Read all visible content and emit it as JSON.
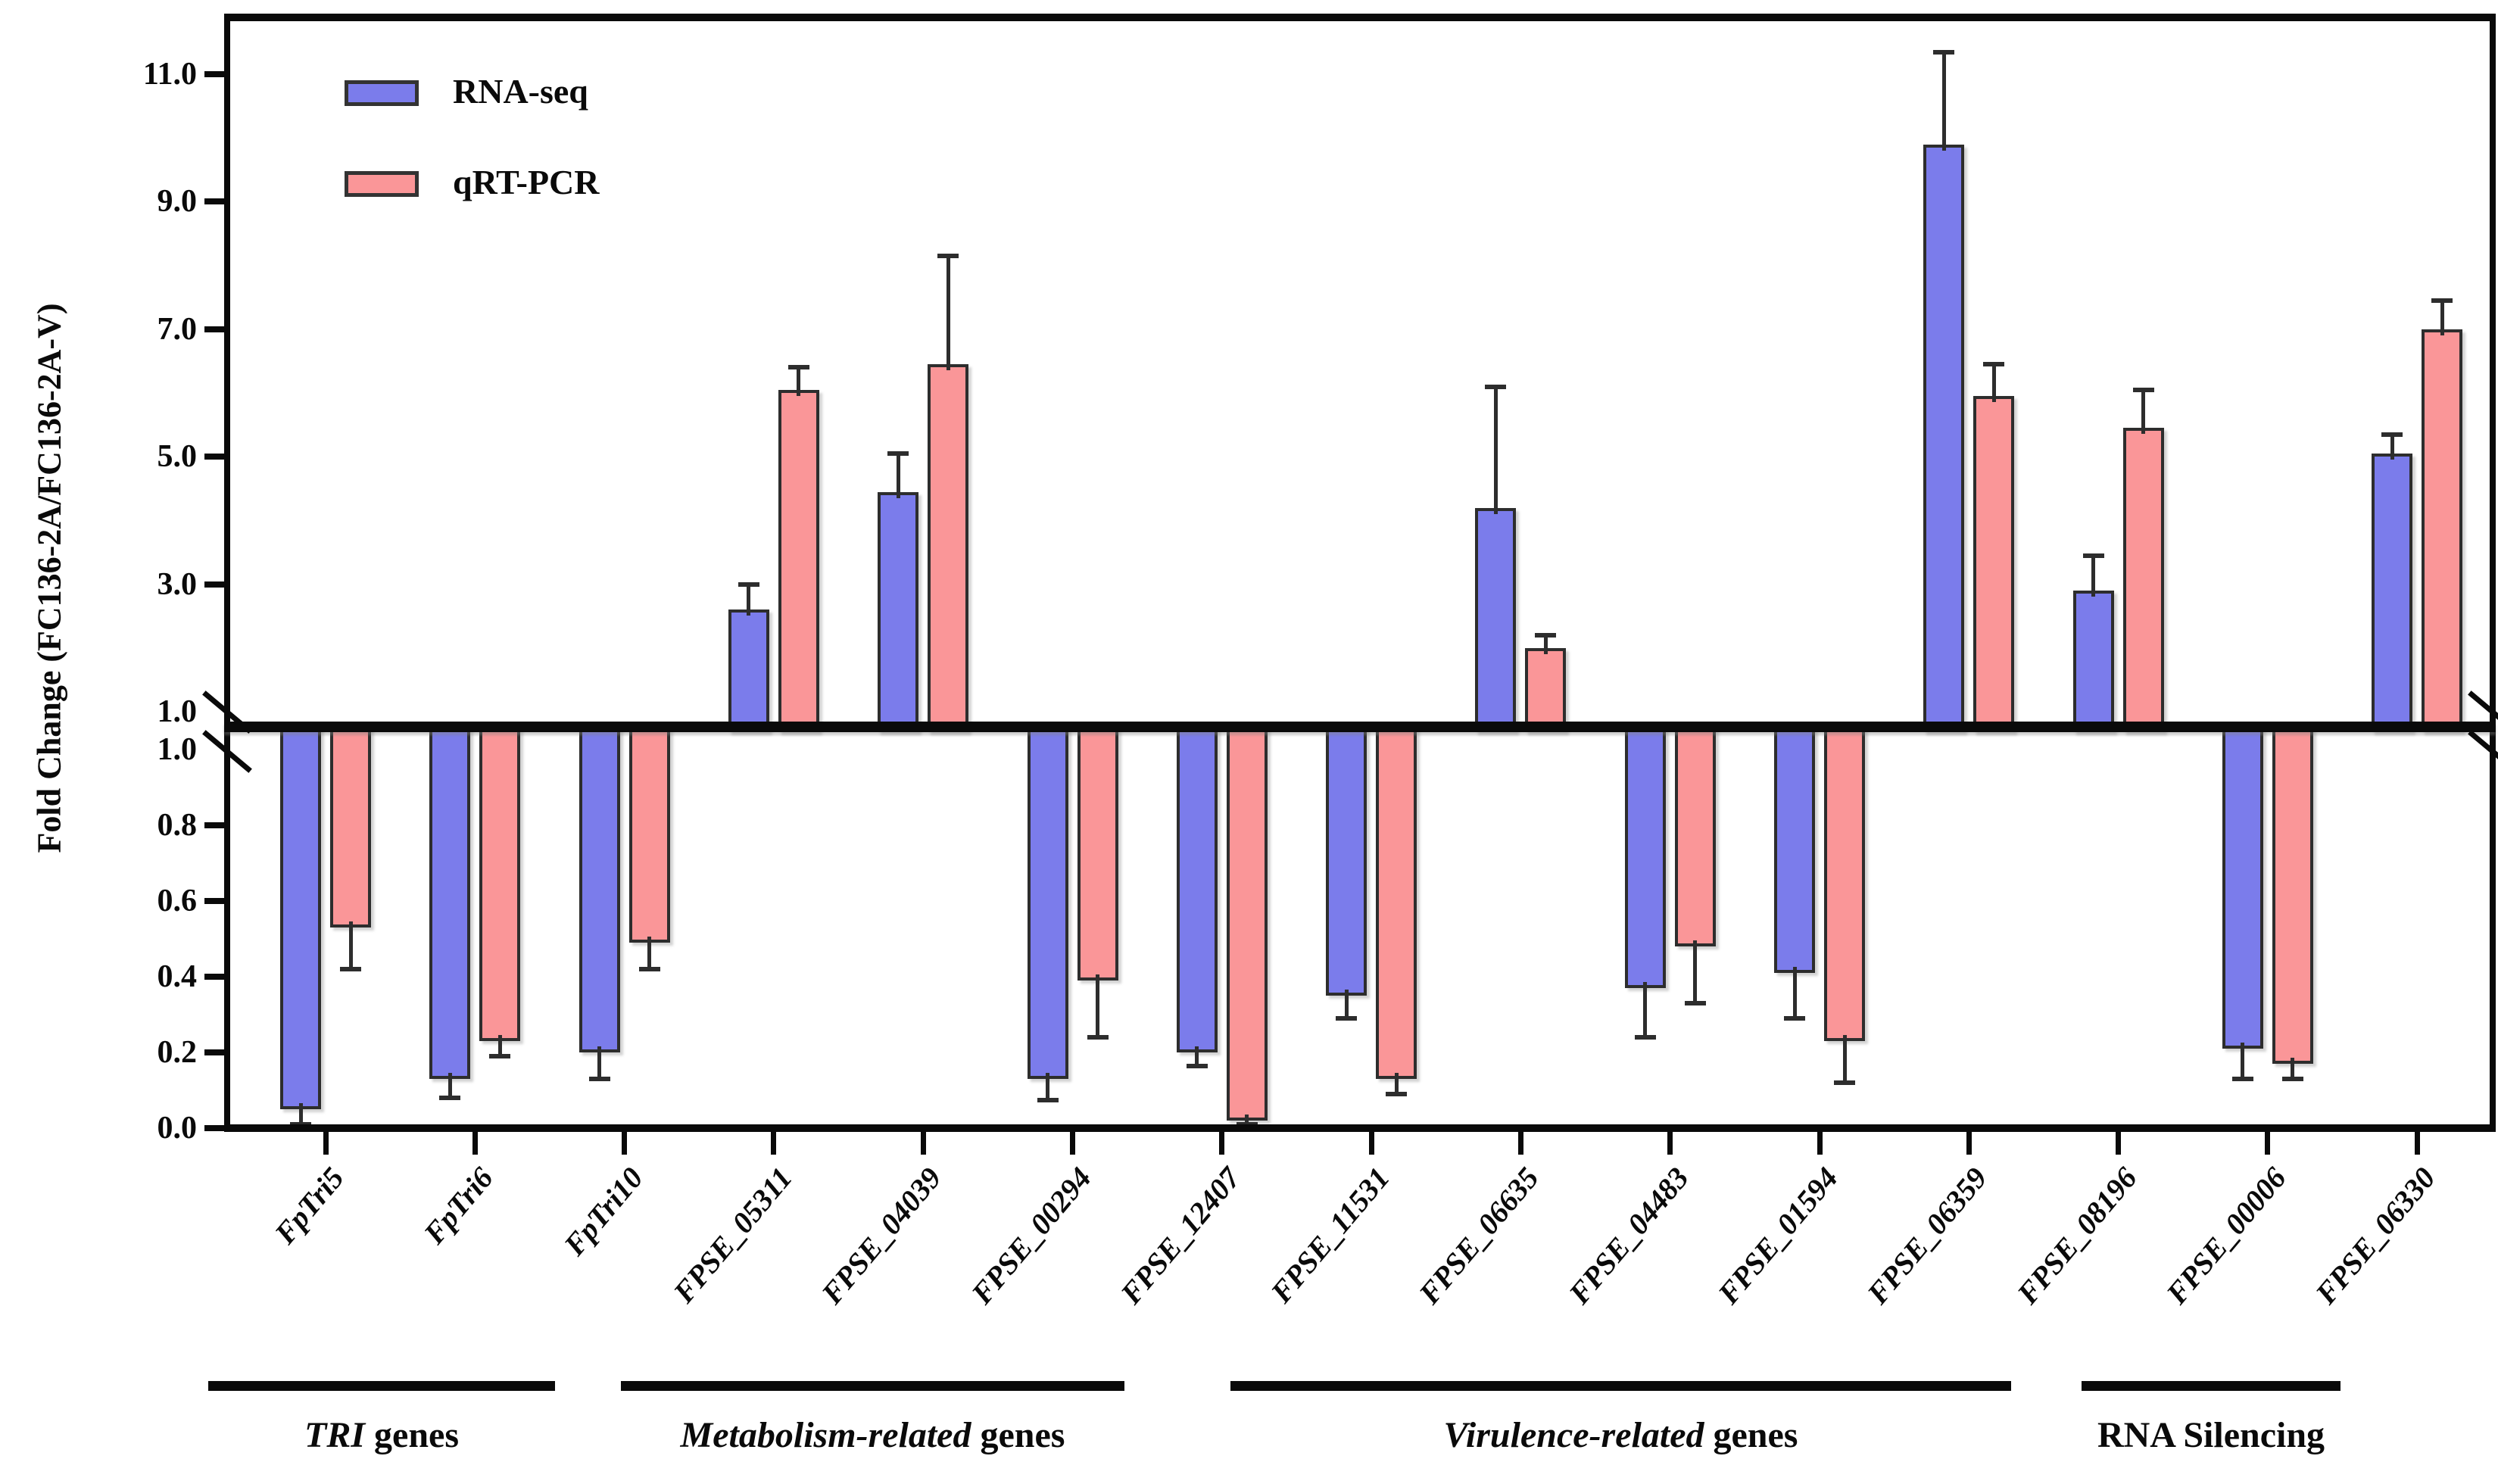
{
  "chart_data": {
    "type": "bar",
    "title": "",
    "ylabel": "Fold Change (FC136-2A/FC136-2A-V)",
    "xlabel": "",
    "grid": false,
    "broken_axis": {
      "upper_range": [
        1.0,
        11.0
      ],
      "upper_tick_labels": [
        "11.0",
        "9.0",
        "7.0",
        "5.0",
        "3.0",
        "1.0"
      ],
      "upper_tick_values": [
        11.0,
        9.0,
        7.0,
        5.0,
        3.0,
        1.0
      ],
      "lower_range": [
        0.0,
        1.0
      ],
      "lower_tick_labels": [
        "1.0",
        "0.8",
        "0.6",
        "0.4",
        "0.2",
        "0.0"
      ],
      "lower_tick_values": [
        1.0,
        0.8,
        0.6,
        0.4,
        0.2,
        0.0
      ]
    },
    "legend": {
      "position": "top-left",
      "entries": [
        {
          "name": "RNA-seq",
          "color": "#7b7ceb"
        },
        {
          "name": "qRT-PCR",
          "color": "#fa9698"
        }
      ]
    },
    "categories": [
      "FpTri5",
      "FpTri6",
      "FpTri10",
      "FPSE_05311",
      "FPSE_04039",
      "FPSE_00294",
      "FPSE_12407",
      "FPSE_11531",
      "FPSE_06635",
      "FPSE_04483",
      "FPSE_01594",
      "FPSE_06359",
      "FPSE_08196",
      "FPSE_00006",
      "FPSE_06330"
    ],
    "series": [
      {
        "name": "RNA-seq",
        "color": "#7b7ceb",
        "values": [
          0.05,
          0.13,
          0.2,
          2.6,
          4.45,
          0.13,
          0.2,
          0.35,
          4.2,
          0.37,
          0.41,
          9.9,
          2.9,
          0.21,
          5.05
        ],
        "errors": [
          0.04,
          0.05,
          0.07,
          0.4,
          0.6,
          0.055,
          0.035,
          0.06,
          1.9,
          0.13,
          0.12,
          1.45,
          0.55,
          0.08,
          0.3
        ]
      },
      {
        "name": "qRT-PCR",
        "color": "#fa9698",
        "values": [
          0.53,
          0.23,
          0.49,
          6.05,
          6.45,
          0.39,
          0.02,
          0.13,
          2.0,
          0.48,
          0.23,
          5.95,
          5.45,
          0.17,
          7.0
        ],
        "errors": [
          0.11,
          0.04,
          0.07,
          0.35,
          1.7,
          0.15,
          0.01,
          0.04,
          0.2,
          0.15,
          0.11,
          0.5,
          0.6,
          0.04,
          0.45
        ]
      }
    ],
    "groups": [
      {
        "label_italic": "TRI",
        "label_regular": " genes",
        "start": 0,
        "end": 2,
        "underline_x": [
          275,
          733
        ]
      },
      {
        "label_italic": "Metabolism-related",
        "label_regular": " genes",
        "start": 3,
        "end": 6,
        "underline_x": [
          820,
          1485
        ]
      },
      {
        "label_italic": "Virulence-related",
        "label_regular": " genes",
        "start": 7,
        "end": 11,
        "underline_x": [
          1625,
          2656
        ]
      },
      {
        "label_italic": "",
        "label_regular": "RNA Silencing",
        "start": 12,
        "end": 14,
        "underline_x": [
          2749,
          3091
        ]
      }
    ],
    "bar_outline_color": "#2d2d2d",
    "axis_color": "#0a0a0a"
  }
}
